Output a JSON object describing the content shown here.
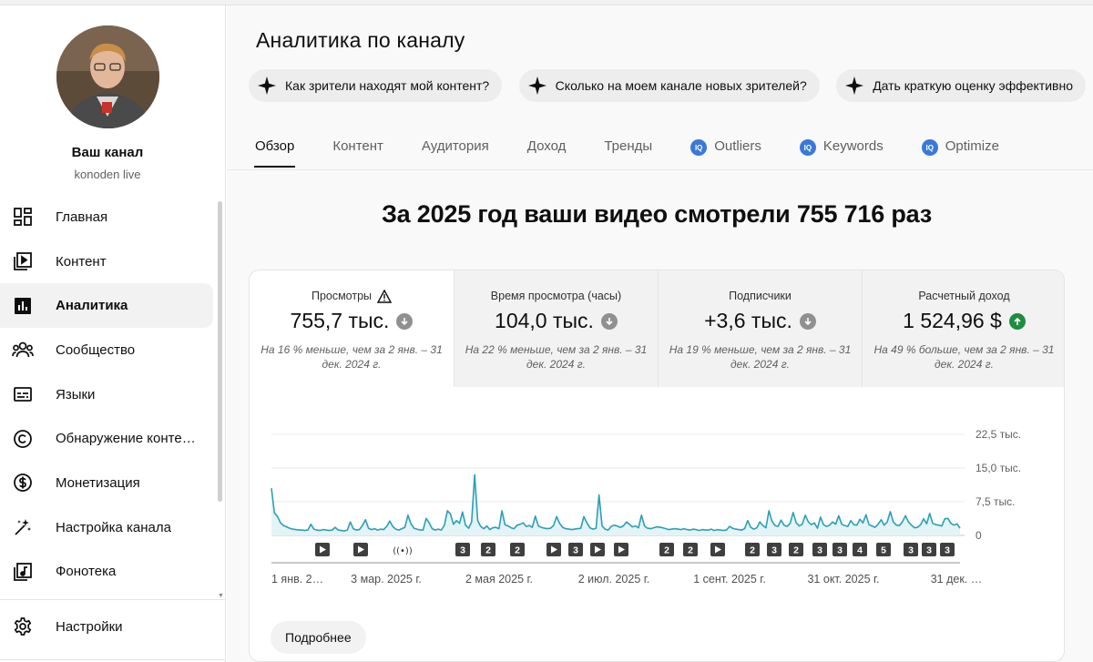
{
  "sidebar": {
    "channel_title": "Ваш канал",
    "channel_handle": "konoden live",
    "items": [
      {
        "label": "Главная",
        "icon": "dashboard-icon"
      },
      {
        "label": "Контент",
        "icon": "video-library-icon"
      },
      {
        "label": "Аналитика",
        "icon": "analytics-icon",
        "active": true
      },
      {
        "label": "Сообщество",
        "icon": "community-icon"
      },
      {
        "label": "Языки",
        "icon": "subtitles-icon"
      },
      {
        "label": "Обнаружение контен…",
        "icon": "copyright-icon"
      },
      {
        "label": "Монетизация",
        "icon": "dollar-icon"
      },
      {
        "label": "Настройка канала",
        "icon": "magic-wand-icon"
      },
      {
        "label": "Фонотека",
        "icon": "audio-library-icon"
      }
    ],
    "settings_label": "Настройки"
  },
  "main": {
    "title": "Аналитика по каналу",
    "chips": [
      "Как зрители находят мой контент?",
      "Сколько на моем канале новых зрителей?",
      "Дать краткую оценку эффективно"
    ],
    "tabs": [
      {
        "label": "Обзор",
        "active": true
      },
      {
        "label": "Контент"
      },
      {
        "label": "Аудитория"
      },
      {
        "label": "Доход"
      },
      {
        "label": "Тренды"
      },
      {
        "label": "Outliers",
        "ext": true,
        "ext_badge": "IQ"
      },
      {
        "label": "Keywords",
        "ext": true,
        "ext_badge": "IQ"
      },
      {
        "label": "Optimize",
        "ext": true,
        "ext_badge": "IQ"
      }
    ],
    "headline": "За 2025 год ваши видео смотрели 755 716 раз",
    "metrics": [
      {
        "label": "Просмотры",
        "value": "755,7 тыс.",
        "trend": "down",
        "warning": true,
        "note": "На 16 % меньше, чем за 2 янв. – 31 дек. 2024 г."
      },
      {
        "label": "Время просмотра (часы)",
        "value": "104,0 тыс.",
        "trend": "down",
        "note": "На 22 % меньше, чем за 2 янв. – 31 дек. 2024 г."
      },
      {
        "label": "Подписчики",
        "value": "+3,6 тыс.",
        "trend": "down",
        "note": "На 19 % меньше, чем за 2 янв. – 31 дек. 2024 г."
      },
      {
        "label": "Расчетный доход",
        "value": "1 524,96 $",
        "trend": "up",
        "note": "На 49 % больше, чем за 2 янв. – 31 дек. 2024 г."
      }
    ],
    "more_button": "Подробнее"
  },
  "chart_data": {
    "type": "area",
    "series": [
      {
        "values": [
          10500,
          5000,
          4200,
          2800,
          2200,
          1900,
          1600,
          1400,
          1300,
          1200,
          1200,
          1100,
          1200,
          2500,
          1400,
          1200,
          1100,
          1300,
          1200,
          1100,
          1200,
          1800,
          1200,
          1100,
          1000,
          1200,
          3000,
          1500,
          1200,
          1300,
          2200,
          3500,
          1600,
          1300,
          1500,
          1200,
          1400,
          1300,
          2000,
          3200,
          2000,
          1400,
          1200,
          1500,
          1800,
          4500,
          2600,
          1600,
          1400,
          1200,
          1200,
          3800,
          2800,
          1500,
          1200,
          1400,
          1200,
          2200,
          5500,
          4800,
          2500,
          3300,
          2700,
          5200,
          2300,
          1600,
          3000,
          13500,
          3300,
          2000,
          1500,
          2100,
          1300,
          1700,
          1800,
          1500,
          5500,
          2400,
          2100,
          1700,
          1500,
          2300,
          2500,
          2800,
          2000,
          2200,
          1800,
          4300,
          2100,
          1800,
          1600,
          1500,
          1600,
          2200,
          4200,
          2700,
          1800,
          1500,
          1400,
          1300,
          1400,
          1500,
          1600,
          4200,
          2800,
          1700,
          1400,
          1600,
          9000,
          2100,
          1400,
          1200,
          2000,
          2300,
          2100,
          1800,
          2100,
          3000,
          2500,
          1900,
          2100,
          1700,
          4500,
          2100,
          1600,
          1500,
          1700,
          1900,
          1800,
          1700,
          1500,
          1300,
          1400,
          1500,
          1400,
          1300,
          1500,
          1300,
          1200,
          1400,
          1300,
          1100,
          1300,
          1200,
          1200,
          1400,
          1100,
          1300,
          1200,
          1100,
          1200,
          2000,
          1600,
          1400,
          1300,
          1200,
          1500,
          3300,
          1800,
          1400,
          1700,
          3000,
          2200,
          1700,
          5500,
          3200,
          2200,
          2000,
          3400,
          2300,
          2000,
          2700,
          5100,
          2800,
          2100,
          2500,
          4500,
          3000,
          2400,
          2800,
          1600,
          4100,
          2400,
          2000,
          2300,
          3000,
          2500,
          4400,
          2500,
          2200,
          2000,
          3300,
          2400,
          2300,
          3600,
          2800,
          4600,
          2400,
          2100,
          1800,
          2500,
          3500,
          2300,
          3000,
          5300,
          3000,
          2300,
          2200,
          3000,
          4400,
          3000,
          2300,
          1700,
          1800,
          2400,
          3700,
          2600,
          4900,
          2700,
          2400,
          2300,
          2100,
          3700,
          3800,
          2700,
          2300,
          2600,
          1600
        ]
      }
    ],
    "y_ticks": [
      "22,5 тыс.",
      "15,0 тыс.",
      "7,5 тыс.",
      "0"
    ],
    "ylim": [
      0,
      22500
    ],
    "x_labels": [
      "1 янв. 2…",
      "3 мар. 2025 г.",
      "2 мая 2025 г.",
      "2 июл. 2025 г.",
      "1 сент. 2025 г.",
      "31 окт. 2025 г.",
      "31 дек. …"
    ],
    "markers": [
      {
        "kind": "play"
      },
      {
        "kind": "play"
      },
      {
        "kind": "live"
      },
      {
        "kind": "num",
        "text": "3"
      },
      {
        "kind": "num",
        "text": "2"
      },
      {
        "kind": "num",
        "text": "2"
      },
      {
        "kind": "play"
      },
      {
        "kind": "num",
        "text": "3"
      },
      {
        "kind": "play"
      },
      {
        "kind": "play"
      },
      {
        "kind": "num",
        "text": "2"
      },
      {
        "kind": "num",
        "text": "2"
      },
      {
        "kind": "play"
      },
      {
        "kind": "num",
        "text": "2"
      },
      {
        "kind": "num",
        "text": "3"
      },
      {
        "kind": "num",
        "text": "2"
      },
      {
        "kind": "num",
        "text": "3"
      },
      {
        "kind": "num",
        "text": "3"
      },
      {
        "kind": "num",
        "text": "4"
      },
      {
        "kind": "num",
        "text": "5"
      },
      {
        "kind": "num",
        "text": "3"
      },
      {
        "kind": "num",
        "text": "3"
      },
      {
        "kind": "num",
        "text": "3"
      }
    ],
    "line_color": "#2ba0b4",
    "fill_color": "#e4f3f6"
  }
}
